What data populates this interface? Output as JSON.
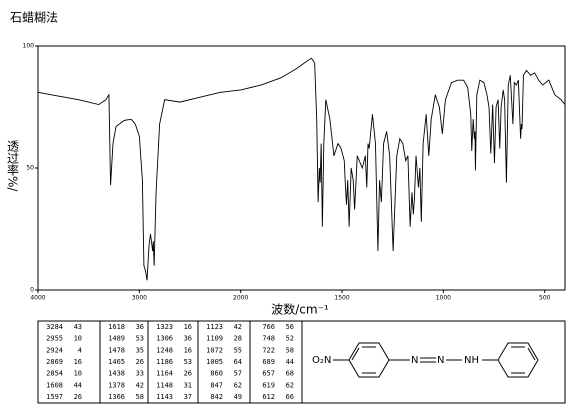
{
  "chart_data": {
    "type": "line",
    "title": "石蜡糊法",
    "x_label": "波数/cm⁻¹",
    "y_label": "透过率%/",
    "color": "#000000",
    "grid": false,
    "xlim": [
      4000,
      400
    ],
    "x_break": {
      "at": 2000,
      "stretch": 2
    },
    "xticks": [
      4000,
      3000,
      2000,
      1500,
      1000,
      500
    ],
    "ylim": [
      0,
      100
    ],
    "yticks": [
      0,
      50,
      100
    ],
    "x": [
      4000,
      3800,
      3600,
      3400,
      3330,
      3300,
      3284,
      3260,
      3230,
      3150,
      3080,
      3040,
      3000,
      2970,
      2955,
      2940,
      2924,
      2905,
      2890,
      2869,
      2862,
      2854,
      2835,
      2800,
      2750,
      2600,
      2400,
      2200,
      2000,
      1900,
      1800,
      1720,
      1670,
      1650,
      1635,
      1625,
      1618,
      1612,
      1608,
      1603,
      1597,
      1590,
      1580,
      1560,
      1540,
      1520,
      1505,
      1489,
      1483,
      1478,
      1472,
      1465,
      1455,
      1445,
      1438,
      1425,
      1400,
      1385,
      1378,
      1372,
      1366,
      1350,
      1335,
      1323,
      1315,
      1306,
      1295,
      1280,
      1265,
      1248,
      1230,
      1215,
      1200,
      1186,
      1175,
      1164,
      1155,
      1148,
      1145,
      1143,
      1135,
      1123,
      1116,
      1109,
      1100,
      1085,
      1072,
      1060,
      1040,
      1020,
      1005,
      990,
      960,
      930,
      900,
      880,
      865,
      860,
      853,
      847,
      844,
      842,
      835,
      820,
      800,
      785,
      775,
      766,
      757,
      748,
      740,
      730,
      722,
      715,
      705,
      698,
      689,
      680,
      670,
      657,
      650,
      640,
      630,
      619,
      615,
      612,
      605,
      590,
      570,
      550,
      530,
      510,
      480,
      450,
      420,
      400
    ],
    "values": [
      81,
      79.5,
      78,
      76,
      78,
      80,
      43,
      60,
      67,
      69.5,
      70,
      68,
      63,
      45,
      10,
      8,
      4,
      18,
      23,
      16,
      20,
      10,
      40,
      68,
      78,
      77,
      79,
      81,
      82,
      84,
      87,
      91,
      94,
      95,
      93,
      70,
      36,
      50,
      44,
      60,
      26,
      60,
      78,
      70,
      55,
      60,
      58,
      53,
      42,
      35,
      45,
      26,
      50,
      45,
      33,
      55,
      50,
      55,
      42,
      60,
      58,
      72,
      60,
      16,
      45,
      36,
      60,
      65,
      55,
      16,
      55,
      62,
      60,
      53,
      55,
      26,
      40,
      31,
      35,
      37,
      55,
      42,
      50,
      28,
      60,
      72,
      55,
      70,
      80,
      75,
      64,
      78,
      85,
      86,
      86,
      83,
      72,
      57,
      70,
      62,
      65,
      49,
      80,
      86,
      85,
      80,
      75,
      56,
      76,
      52,
      75,
      78,
      58,
      75,
      82,
      78,
      44,
      84,
      88,
      68,
      85,
      84,
      86,
      62,
      68,
      66,
      88,
      90,
      88,
      89,
      86,
      84,
      86,
      80,
      78,
      76
    ]
  },
  "peak_table": [
    [
      [
        3284,
        43
      ],
      [
        2955,
        10
      ],
      [
        2924,
        4
      ],
      [
        2869,
        16
      ],
      [
        2854,
        10
      ],
      [
        1608,
        44
      ],
      [
        1597,
        26
      ]
    ],
    [
      [
        1618,
        36
      ],
      [
        1489,
        53
      ],
      [
        1478,
        35
      ],
      [
        1465,
        26
      ],
      [
        1438,
        33
      ],
      [
        1378,
        42
      ],
      [
        1366,
        58
      ]
    ],
    [
      [
        1323,
        16
      ],
      [
        1306,
        36
      ],
      [
        1248,
        16
      ],
      [
        1186,
        53
      ],
      [
        1164,
        26
      ],
      [
        1148,
        31
      ],
      [
        1143,
        37
      ]
    ],
    [
      [
        1123,
        42
      ],
      [
        1109,
        28
      ],
      [
        1072,
        55
      ],
      [
        1005,
        64
      ],
      [
        860,
        57
      ],
      [
        847,
        62
      ],
      [
        842,
        49
      ]
    ],
    [
      [
        766,
        56
      ],
      [
        748,
        52
      ],
      [
        722,
        58
      ],
      [
        689,
        44
      ],
      [
        657,
        68
      ],
      [
        619,
        62
      ],
      [
        612,
        66
      ]
    ]
  ],
  "structure": {
    "left_group": "O₂N",
    "atoms": [
      "N",
      "N",
      "NH"
    ]
  }
}
